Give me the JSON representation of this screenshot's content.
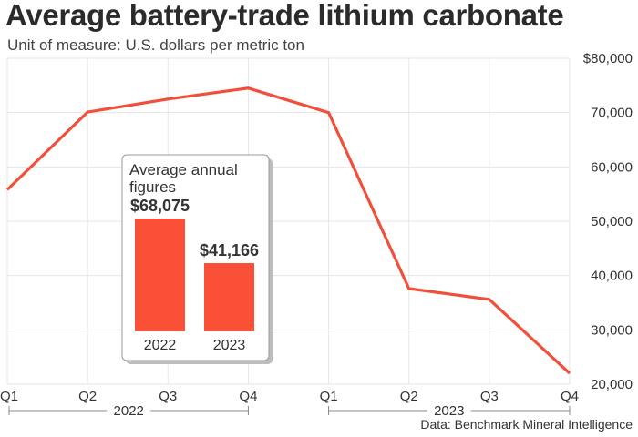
{
  "title": "Average battery-trade lithium carbonate",
  "subtitle": "Unit of measure: U.S. dollars per metric ton",
  "source": "Data: Benchmark Mineral Intelligence",
  "colors": {
    "line": "#f0503a",
    "bar": "#fb5038",
    "grid": "#e6e6e6"
  },
  "chart_data": [
    {
      "type": "line",
      "title": "Average battery-trade lithium carbonate",
      "subtitle": "Unit of measure: U.S. dollars per metric ton",
      "categories": [
        "Q1",
        "Q2",
        "Q3",
        "Q4",
        "Q1",
        "Q2",
        "Q3",
        "Q4"
      ],
      "year_groups": [
        {
          "label": "2022",
          "quarters": [
            "Q1",
            "Q2",
            "Q3",
            "Q4"
          ]
        },
        {
          "label": "2023",
          "quarters": [
            "Q1",
            "Q2",
            "Q3",
            "Q4"
          ]
        }
      ],
      "values": [
        55800,
        70100,
        72500,
        74500,
        70000,
        37600,
        35600,
        22000
      ],
      "ylim": [
        20000,
        80000
      ],
      "yticks": [
        20000,
        30000,
        40000,
        50000,
        60000,
        70000,
        80000
      ],
      "ytick_labels": [
        "20,000",
        "30,000",
        "40,000",
        "50,000",
        "60,000",
        "70,000",
        "$80,000"
      ],
      "grid": true,
      "source": "Data: Benchmark Mineral Intelligence"
    },
    {
      "type": "bar",
      "title": "Average annual figures",
      "categories": [
        "2022",
        "2023"
      ],
      "values": [
        68075,
        41166
      ],
      "value_labels": [
        "$68,075",
        "$41,166"
      ]
    }
  ]
}
